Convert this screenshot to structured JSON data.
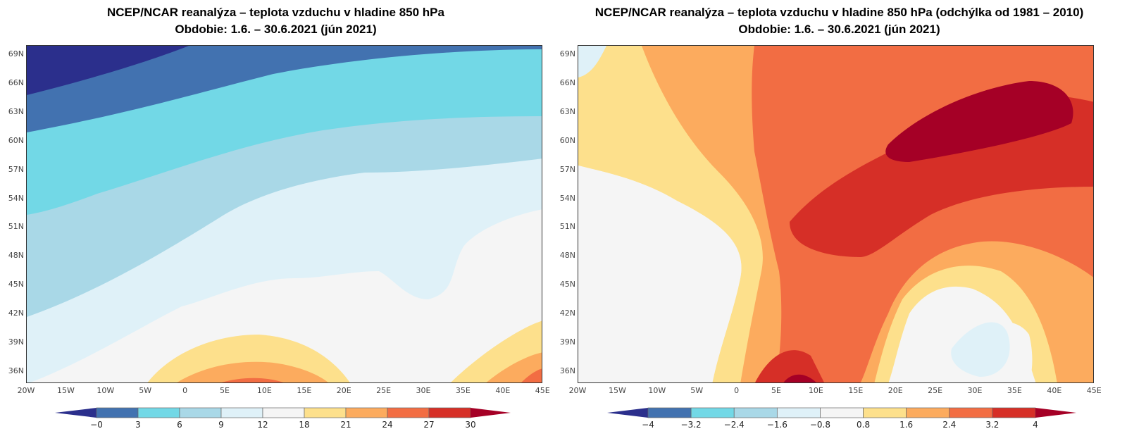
{
  "panels": [
    {
      "title_line1": "NCEP/NCAR reanalýza – teplota vzduchu v hladine 850 hPa",
      "title_line2": "Obdobie: 1.6. – 30.6.2021 (jún 2021)",
      "colorbar_labels": [
        "−0",
        "3",
        "6",
        "9",
        "12",
        "18",
        "21",
        "24",
        "27",
        "30"
      ]
    },
    {
      "title_line1": "NCEP/NCAR reanalýza – teplota vzduchu v hladine 850 hPa (odchýlka od 1981 – 2010)",
      "title_line2": "Obdobie: 1.6. – 30.6.2021 (jún 2021)",
      "colorbar_labels": [
        "−4",
        "−3.2",
        "−2.4",
        "−1.6",
        "−0.8",
        "0.8",
        "1.6",
        "2.4",
        "3.2",
        "4"
      ]
    }
  ],
  "lon_ticks": [
    "20W",
    "15W",
    "10W",
    "5W",
    "0",
    "5E",
    "10E",
    "15E",
    "20E",
    "25E",
    "30E",
    "35E",
    "40E",
    "45E"
  ],
  "lat_ticks": [
    "69N",
    "66N",
    "63N",
    "60N",
    "57N",
    "54N",
    "51N",
    "48N",
    "45N",
    "42N",
    "39N",
    "36N"
  ],
  "colors": {
    "below": "#2b2f8c",
    "levels": [
      "#4272b0",
      "#72d8e6",
      "#a9d8e7",
      "#dff1f8",
      "#f5f5f5",
      "#fde08c",
      "#fcab5e",
      "#f26d43",
      "#d62f27"
    ],
    "above": "#a50026"
  }
}
